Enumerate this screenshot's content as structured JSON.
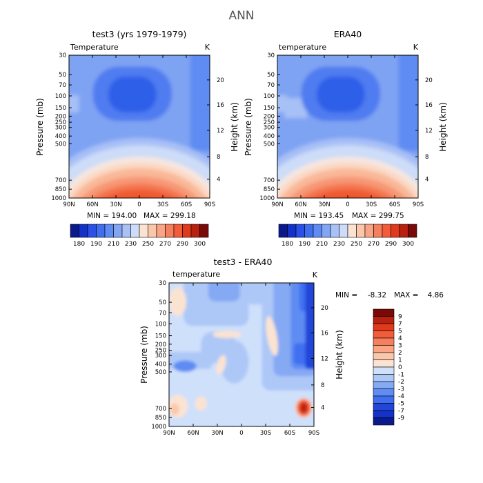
{
  "page_title": "ANN",
  "chart_data": [
    {
      "type": "heatmap",
      "title": "test3 (yrs 1979-1979)",
      "variable": "Temperature",
      "units": "K",
      "ylabel": "Pressure (mb)",
      "ylabel_right": "Height (km)",
      "x_ticks": [
        "90N",
        "60N",
        "30N",
        "0",
        "30S",
        "60S",
        "90S"
      ],
      "y_ticks": [
        "30",
        "50",
        "70",
        "100",
        "150",
        "200",
        "250",
        "300",
        "400",
        "500",
        "700",
        "850",
        "1000"
      ],
      "y_ticks_right": [
        "20",
        "16",
        "12",
        "8",
        "4"
      ],
      "min_label": "MIN = 194.00",
      "max_label": "MAX = 299.18",
      "min": 194.0,
      "max": 299.18,
      "colorbar": {
        "labels": [
          "180",
          "190",
          "210",
          "230",
          "250",
          "270",
          "290",
          "300"
        ],
        "colors": [
          "#0a1a8c",
          "#1432c8",
          "#2a50e6",
          "#3f6ff0",
          "#5f8cf2",
          "#82a6f4",
          "#a8c2f6",
          "#cddcf8",
          "#fbe3d2",
          "#fbc7aa",
          "#f9a585",
          "#f6805e",
          "#f25c39",
          "#e03a1c",
          "#b8200f",
          "#7a0a08"
        ]
      }
    },
    {
      "type": "heatmap",
      "title": "ERA40",
      "variable": "temperature",
      "units": "K",
      "ylabel": "Pressure (mb)",
      "ylabel_right": "Height (km)",
      "x_ticks": [
        "90N",
        "60N",
        "30N",
        "0",
        "30S",
        "60S",
        "90S"
      ],
      "y_ticks": [
        "30",
        "50",
        "70",
        "100",
        "150",
        "200",
        "250",
        "300",
        "400",
        "500",
        "700",
        "850",
        "1000"
      ],
      "y_ticks_right": [
        "20",
        "16",
        "12",
        "8",
        "4"
      ],
      "min_label": "MIN = 193.45",
      "max_label": "MAX = 299.75",
      "min": 193.45,
      "max": 299.75,
      "colorbar": {
        "labels": [
          "180",
          "190",
          "210",
          "230",
          "250",
          "270",
          "290",
          "300"
        ],
        "colors": [
          "#0a1a8c",
          "#1432c8",
          "#2a50e6",
          "#3f6ff0",
          "#5f8cf2",
          "#82a6f4",
          "#a8c2f6",
          "#cddcf8",
          "#fbe3d2",
          "#fbc7aa",
          "#f9a585",
          "#f6805e",
          "#f25c39",
          "#e03a1c",
          "#b8200f",
          "#7a0a08"
        ]
      }
    },
    {
      "type": "heatmap",
      "title": "test3 - ERA40",
      "variable": "temperature",
      "units": "K",
      "ylabel": "Pressure (mb)",
      "ylabel_right": "Height (km)",
      "x_ticks": [
        "90N",
        "60N",
        "30N",
        "0",
        "30S",
        "60S",
        "90S"
      ],
      "y_ticks": [
        "30",
        "50",
        "70",
        "100",
        "150",
        "200",
        "250",
        "300",
        "400",
        "500",
        "700",
        "850",
        "1000"
      ],
      "y_ticks_right": [
        "20",
        "16",
        "12",
        "8",
        "4"
      ],
      "min_label": "MIN =",
      "min_value": "-8.32",
      "max_label": "MAX =",
      "max_value": "4.86",
      "min": -8.32,
      "max": 4.86,
      "colorbar": {
        "labels": [
          "9",
          "7",
          "5",
          "4",
          "3",
          "2",
          "1",
          "0",
          "-1",
          "-2",
          "-3",
          "-4",
          "-5",
          "-7",
          "-9"
        ],
        "colors": [
          "#7a0a08",
          "#b8200f",
          "#e03a1c",
          "#f25c39",
          "#f6805e",
          "#f9a585",
          "#fbc7aa",
          "#fbe3d2",
          "#cfe0fb",
          "#adc8f7",
          "#86a9f4",
          "#5f8cf2",
          "#3f6ff0",
          "#2446d8",
          "#1432c8",
          "#0a1a8c"
        ]
      }
    }
  ]
}
